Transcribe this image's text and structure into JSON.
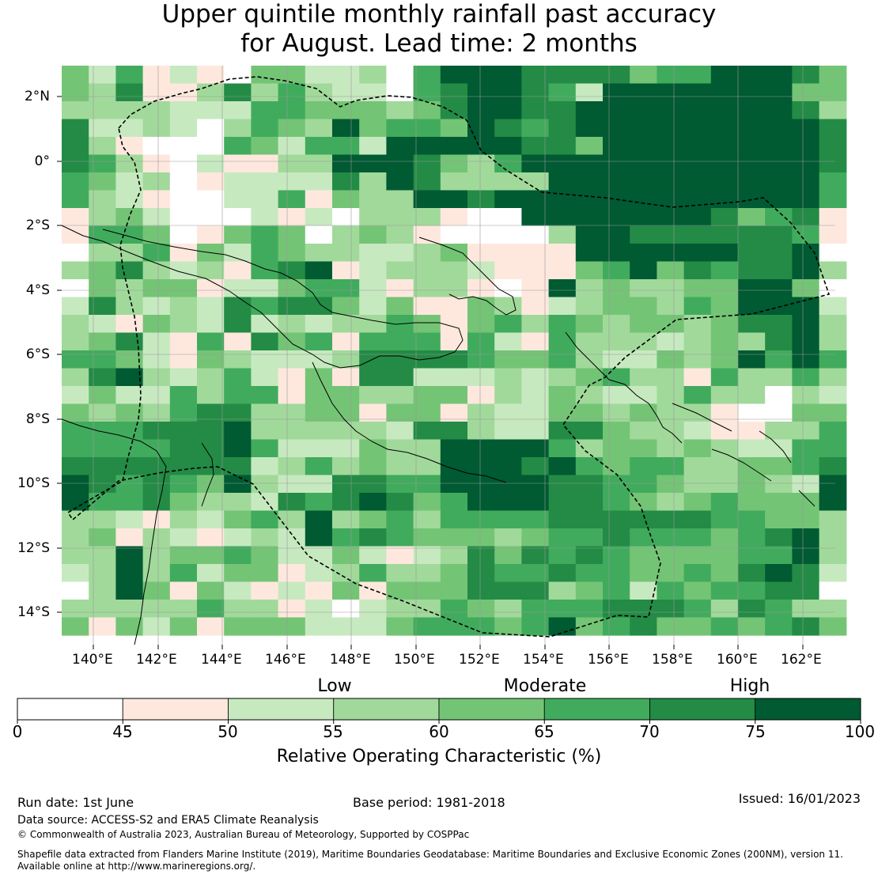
{
  "title": {
    "line1": "Upper quintile monthly rainfall past accuracy",
    "line2": "for August. Lead time: 2 months"
  },
  "map": {
    "lon_labels": [
      "140°E",
      "142°E",
      "144°E",
      "146°E",
      "148°E",
      "150°E",
      "152°E",
      "154°E",
      "156°E",
      "158°E",
      "160°E",
      "162°E"
    ],
    "lat_labels": [
      "2°N",
      "0°",
      "2°S",
      "4°S",
      "6°S",
      "8°S",
      "10°S",
      "12°S",
      "14°S"
    ]
  },
  "colorbar": {
    "category_labels": [
      "Low",
      "Moderate",
      "High"
    ],
    "tick_labels": [
      "0",
      "45",
      "50",
      "55",
      "60",
      "65",
      "70",
      "75",
      "100"
    ],
    "bin_colors": [
      "#ffffff",
      "#fee8de",
      "#c7e9c0",
      "#a1d99b",
      "#74c476",
      "#41ab5d",
      "#238b45",
      "#005a32"
    ],
    "axis_title": "Relative Operating Characteristic (%)"
  },
  "footer": {
    "run_date": "Run date: 1st June",
    "base_period": "Base period: 1981-2018",
    "issued": "Issued: 16/01/2023",
    "data_source": "Data source: ACCESS-S2 and ERA5 Climate Reanalysis",
    "copyright": "© Commonwealth of Australia 2023, Australian Bureau of Meteorology, Supported by COSPPac",
    "shapefile_line1": "Shapefile data extracted from Flanders Marine Institute (2019), Maritime Boundaries Geodatabase: Maritime Boundaries and Exclusive Economic Zones (200NM), version 11.",
    "shapefile_line2": "Available online at http://www.marineregions.org/."
  }
}
